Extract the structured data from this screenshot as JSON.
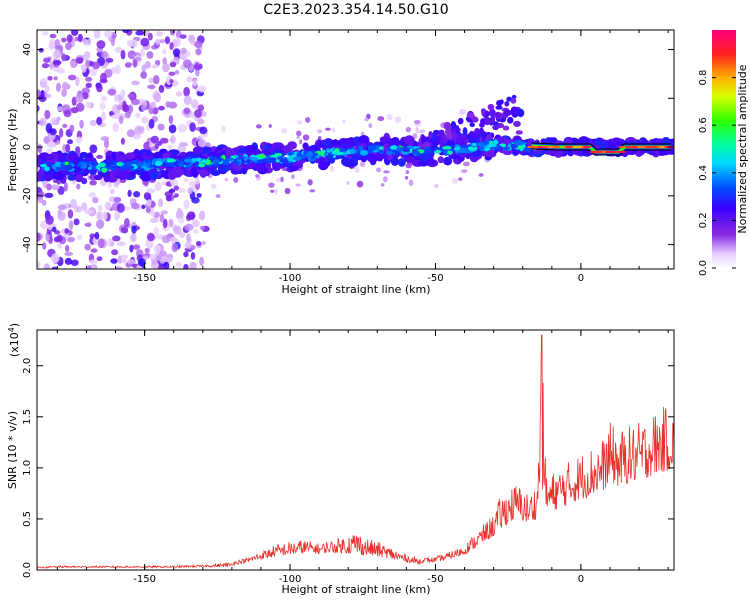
{
  "title": "C2E3.2023.354.14.50.G10",
  "chart_data": [
    {
      "type": "heatmap",
      "xlabel": "Height of straight line (km)",
      "ylabel": "Frequency (Hz)",
      "xlim": [
        -187,
        32
      ],
      "ylim": [
        -50,
        48
      ],
      "x_ticks": [
        -150,
        -100,
        -50,
        0
      ],
      "y_ticks": [
        -40,
        -20,
        0,
        20,
        40
      ],
      "colorbar": {
        "label": "Normalized spectral amplitude",
        "range": [
          0,
          1
        ],
        "ticks": [
          0.0,
          0.2,
          0.4,
          0.6,
          0.8
        ]
      },
      "ridge": {
        "x": [
          -187,
          -160,
          -130,
          -100,
          -70,
          -50,
          -30,
          -15,
          0,
          30
        ],
        "y": [
          -8,
          -8,
          -6,
          -4,
          -1,
          -2,
          1,
          0,
          0,
          0
        ]
      }
    },
    {
      "type": "line",
      "xlabel": "Height of straight line (km)",
      "ylabel": "SNR (10 * v/v)",
      "yscale_label": "(x10",
      "yscale_exp": "4",
      "yscale_close": ")",
      "xlim": [
        -187,
        32
      ],
      "ylim": [
        0,
        2.35
      ],
      "x_ticks": [
        -150,
        -100,
        -50,
        0
      ],
      "y_ticks": [
        0.0,
        0.5,
        1.0,
        1.5,
        2.0
      ],
      "color": "#e8302a",
      "series": [
        {
          "x": [
            -187,
            -180,
            -170,
            -160,
            -150,
            -140,
            -130,
            -125,
            -120,
            -115,
            -110,
            -105,
            -100,
            -95,
            -90,
            -85,
            -80,
            -77,
            -75,
            -70,
            -65,
            -60,
            -55,
            -50,
            -45,
            -40,
            -35,
            -30,
            -28,
            -25,
            -22,
            -20,
            -18,
            -15,
            -13.5,
            -12,
            -10,
            -8,
            -5,
            -3,
            0,
            3,
            5,
            8,
            10,
            13,
            15,
            20,
            25,
            30,
            32
          ],
          "values": [
            0.03,
            0.04,
            0.04,
            0.04,
            0.04,
            0.04,
            0.05,
            0.06,
            0.08,
            0.12,
            0.18,
            0.25,
            0.28,
            0.3,
            0.26,
            0.3,
            0.35,
            0.4,
            0.33,
            0.28,
            0.22,
            0.15,
            0.12,
            0.13,
            0.18,
            0.25,
            0.4,
            0.55,
            0.7,
            0.8,
            0.85,
            0.8,
            0.75,
            0.85,
            2.3,
            0.95,
            0.95,
            1.0,
            1.05,
            1.1,
            1.15,
            1.2,
            1.25,
            1.3,
            1.45,
            1.35,
            1.4,
            1.45,
            1.55,
            1.62,
            1.65
          ]
        }
      ]
    }
  ]
}
